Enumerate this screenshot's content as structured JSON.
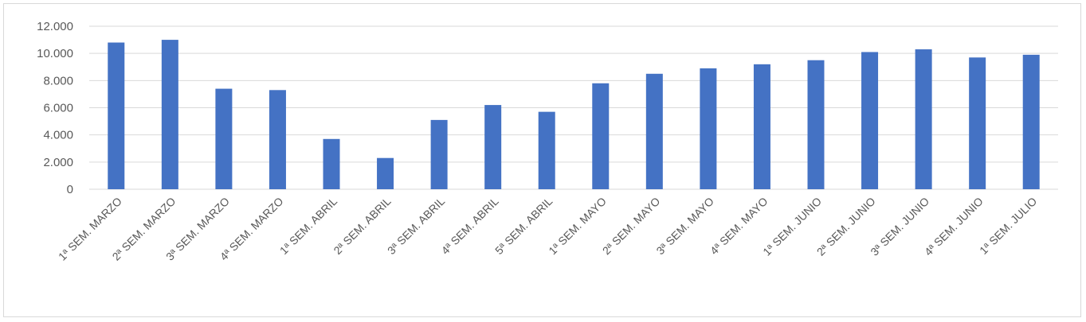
{
  "chart_data": {
    "type": "bar",
    "title": "",
    "xlabel": "",
    "ylabel": "",
    "categories": [
      "1ª SEM. MARZO",
      "2ª SEM. MARZO",
      "3ª SEM. MARZO",
      "4ª SEM. MARZO",
      "1ª SEM. ABRIL",
      "2ª SEM. ABRIL",
      "3ª SEM. ABRIL",
      "4ª SEM. ABRIL",
      "5ª SEM. ABRIL",
      "1ª SEM. MAYO",
      "2ª SEM. MAYO",
      "3ª SEM. MAYO",
      "4ª SEM. MAYO",
      "1ª SEM. JUNIO",
      "2ª SEM. JUNIO",
      "3ª SEM. JUNIO",
      "4ª SEM. JUNIO",
      "1ª SEM. JULIO"
    ],
    "values": [
      10800,
      11000,
      7400,
      7300,
      3700,
      2300,
      5100,
      6200,
      5700,
      7800,
      8500,
      8900,
      9200,
      9500,
      10100,
      10300,
      9700,
      9900
    ],
    "ylim": [
      0,
      12000
    ],
    "yticks": [
      0,
      2000,
      4000,
      6000,
      8000,
      10000,
      12000
    ],
    "ytick_labels": [
      "0",
      "2.000",
      "4.000",
      "6.000",
      "8.000",
      "10.000",
      "12.000"
    ],
    "grid": true,
    "legend": "none",
    "colors": {
      "bar": "#4472c4",
      "grid": "#d9d9d9",
      "text": "#595959"
    }
  }
}
